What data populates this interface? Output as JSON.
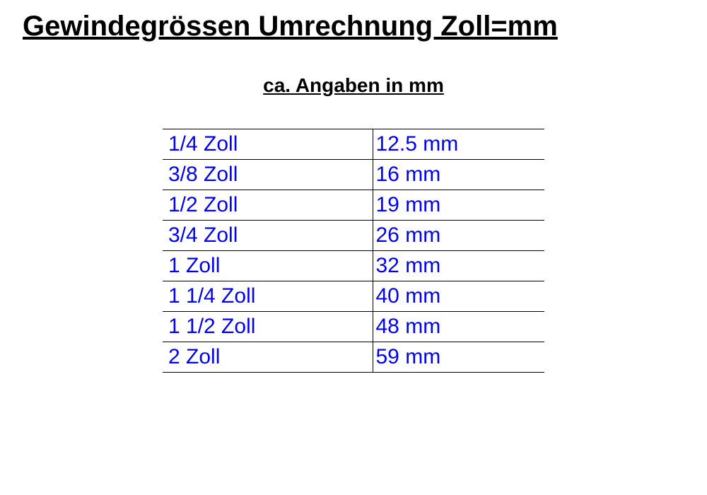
{
  "title": "Gewindegrössen Umrechnung Zoll=mm",
  "subtitle": "ca. Angaben in mm",
  "table": {
    "text_color": "#0000ee",
    "border_color": "#000000",
    "background_color": "#ffffff",
    "font_size_pt": 22,
    "columns": [
      "Zoll",
      "mm"
    ],
    "rows": [
      {
        "zoll": "1/4 Zoll",
        "mm": "12.5 mm"
      },
      {
        "zoll": "3/8 Zoll",
        "mm": "16 mm"
      },
      {
        "zoll": "1/2 Zoll",
        "mm": "19 mm"
      },
      {
        "zoll": "3/4 Zoll",
        "mm": "26 mm"
      },
      {
        "zoll": "1 Zoll",
        "mm": "32 mm"
      },
      {
        "zoll": "1 1/4 Zoll",
        "mm": "40 mm"
      },
      {
        "zoll": "1 1/2 Zoll",
        "mm": "48 mm"
      },
      {
        "zoll": "2 Zoll",
        "mm": "59 mm"
      }
    ]
  },
  "typography": {
    "title_fontsize_pt": 30,
    "title_weight": "bold",
    "title_color": "#000000",
    "subtitle_fontsize_pt": 21,
    "subtitle_weight": "bold",
    "subtitle_color": "#000000",
    "font_family": "Arial"
  }
}
